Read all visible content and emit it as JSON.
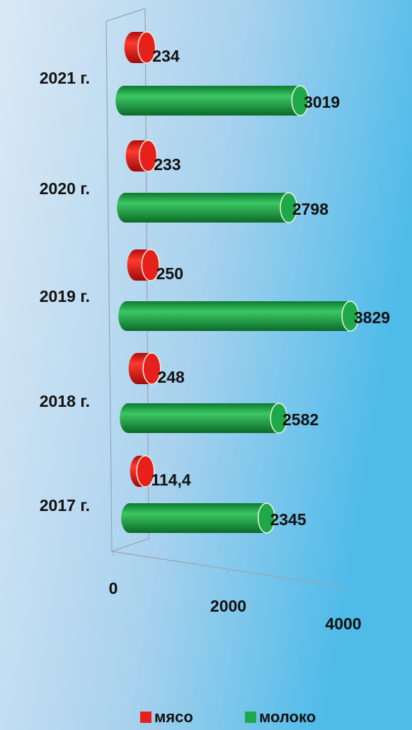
{
  "chart_data": {
    "type": "bar3d-horizontal",
    "categories": [
      "2021 г.",
      "2020 г.",
      "2019 г.",
      "2018 г.",
      "2017 г."
    ],
    "series": [
      {
        "name": "мясо",
        "color": "#e8201c",
        "values": [
          234,
          233,
          250,
          248,
          114.4
        ],
        "value_labels": [
          "234",
          "233",
          "250",
          "248",
          "114,4"
        ]
      },
      {
        "name": "молоко",
        "color": "#1fa84a",
        "values": [
          3019,
          2798,
          3829,
          2582,
          2345
        ]
      }
    ],
    "xlim": [
      0,
      4000
    ],
    "xticks": [
      0,
      2000,
      4000
    ],
    "legend": "bottom"
  }
}
